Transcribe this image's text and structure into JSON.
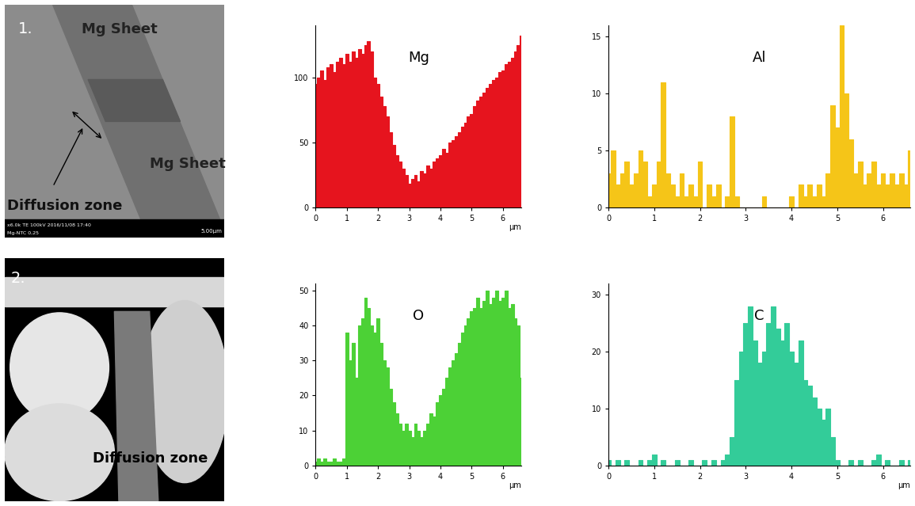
{
  "panels": [
    {
      "label": "1.",
      "top_text": "Mg Sheet",
      "bottom_text": "Mg Sheet",
      "zone_text": "Diffusion zone",
      "info_bar": [
        "x6.0k TE 100kV 2016/11/08 17:40",
        "Mg-NTC 0,25"
      ],
      "scale_bar": "5.00μm"
    },
    {
      "label": "2.",
      "zone_text": "Diffusion zone"
    }
  ],
  "chart_data": [
    {
      "type": "area",
      "title": "Mg",
      "color": "#e6141e",
      "x": [
        0,
        0.1,
        0.2,
        0.3,
        0.4,
        0.5,
        0.6,
        0.7,
        0.8,
        0.9,
        1.0,
        1.1,
        1.2,
        1.3,
        1.4,
        1.5,
        1.6,
        1.7,
        1.8,
        1.9,
        2.0,
        2.1,
        2.2,
        2.3,
        2.4,
        2.5,
        2.6,
        2.7,
        2.8,
        2.9,
        3.0,
        3.1,
        3.2,
        3.3,
        3.4,
        3.5,
        3.6,
        3.7,
        3.8,
        3.9,
        4.0,
        4.1,
        4.2,
        4.3,
        4.4,
        4.5,
        4.6,
        4.7,
        4.8,
        4.9,
        5.0,
        5.1,
        5.2,
        5.3,
        5.4,
        5.5,
        5.6,
        5.7,
        5.8,
        5.9,
        6.0,
        6.1,
        6.2,
        6.3,
        6.4,
        6.5,
        6.6
      ],
      "values": [
        95,
        100,
        105,
        98,
        108,
        110,
        104,
        112,
        115,
        110,
        118,
        112,
        120,
        115,
        122,
        118,
        125,
        128,
        120,
        100,
        95,
        85,
        78,
        70,
        58,
        48,
        40,
        35,
        30,
        25,
        18,
        22,
        25,
        20,
        28,
        26,
        32,
        30,
        35,
        38,
        40,
        45,
        42,
        50,
        52,
        55,
        58,
        62,
        65,
        70,
        72,
        78,
        82,
        85,
        88,
        92,
        95,
        98,
        100,
        104,
        105,
        110,
        112,
        115,
        120,
        125,
        132
      ],
      "xlim": [
        0,
        6.6
      ],
      "xticks": [
        0,
        1,
        2,
        3,
        4,
        5,
        6
      ],
      "ylim": [
        0,
        140
      ],
      "yticks": [
        0,
        50,
        100
      ],
      "x_label": "µm"
    },
    {
      "type": "area",
      "title": "Al",
      "color": "#f5c518",
      "x": [
        0,
        0.1,
        0.2,
        0.3,
        0.4,
        0.5,
        0.6,
        0.7,
        0.8,
        0.9,
        1.0,
        1.1,
        1.2,
        1.3,
        1.4,
        1.5,
        1.6,
        1.7,
        1.8,
        1.9,
        2.0,
        2.1,
        2.2,
        2.3,
        2.4,
        2.5,
        2.6,
        2.7,
        2.8,
        2.9,
        3.0,
        3.1,
        3.2,
        3.3,
        3.4,
        3.5,
        3.6,
        3.7,
        3.8,
        3.9,
        4.0,
        4.1,
        4.2,
        4.3,
        4.4,
        4.5,
        4.6,
        4.7,
        4.8,
        4.9,
        5.0,
        5.1,
        5.2,
        5.3,
        5.4,
        5.5,
        5.6,
        5.7,
        5.8,
        5.9,
        6.0,
        6.1,
        6.2,
        6.3,
        6.4,
        6.5,
        6.6
      ],
      "values": [
        3,
        5,
        2,
        3,
        4,
        2,
        3,
        5,
        4,
        1,
        2,
        4,
        11,
        3,
        2,
        1,
        3,
        1,
        2,
        1,
        4,
        0,
        2,
        1,
        2,
        0,
        1,
        8,
        1,
        0,
        0,
        0,
        0,
        0,
        1,
        0,
        0,
        0,
        0,
        0,
        1,
        0,
        2,
        1,
        2,
        1,
        2,
        1,
        3,
        9,
        7,
        16,
        10,
        6,
        3,
        4,
        2,
        3,
        4,
        2,
        3,
        2,
        3,
        2,
        3,
        2,
        5
      ],
      "xlim": [
        0,
        6.6
      ],
      "xticks": [
        0,
        1,
        2,
        3,
        4,
        5,
        6
      ],
      "ylim": [
        0,
        16
      ],
      "yticks": [
        0,
        5,
        10,
        15
      ]
    },
    {
      "type": "area",
      "title": "O",
      "color": "#4cd136",
      "x": [
        0,
        0.1,
        0.2,
        0.3,
        0.4,
        0.5,
        0.6,
        0.7,
        0.8,
        0.9,
        1.0,
        1.1,
        1.2,
        1.3,
        1.4,
        1.5,
        1.6,
        1.7,
        1.8,
        1.9,
        2.0,
        2.1,
        2.2,
        2.3,
        2.4,
        2.5,
        2.6,
        2.7,
        2.8,
        2.9,
        3.0,
        3.1,
        3.2,
        3.3,
        3.4,
        3.5,
        3.6,
        3.7,
        3.8,
        3.9,
        4.0,
        4.1,
        4.2,
        4.3,
        4.4,
        4.5,
        4.6,
        4.7,
        4.8,
        4.9,
        5.0,
        5.1,
        5.2,
        5.3,
        5.4,
        5.5,
        5.6,
        5.7,
        5.8,
        5.9,
        6.0,
        6.1,
        6.2,
        6.3,
        6.4,
        6.5,
        6.6
      ],
      "values": [
        1,
        2,
        1,
        2,
        1,
        1,
        2,
        1,
        1,
        2,
        38,
        30,
        35,
        25,
        40,
        42,
        48,
        45,
        40,
        38,
        42,
        35,
        30,
        28,
        22,
        18,
        15,
        12,
        10,
        12,
        10,
        8,
        12,
        10,
        8,
        10,
        12,
        15,
        14,
        18,
        20,
        22,
        25,
        28,
        30,
        32,
        35,
        38,
        40,
        42,
        44,
        45,
        48,
        45,
        47,
        50,
        46,
        48,
        50,
        47,
        48,
        50,
        45,
        46,
        42,
        40,
        25
      ],
      "xlim": [
        0,
        6.6
      ],
      "xticks": [
        0,
        1,
        2,
        3,
        4,
        5,
        6
      ],
      "ylim": [
        0,
        52
      ],
      "yticks": [
        0,
        10,
        20,
        30,
        40,
        50
      ],
      "x_label": "µm"
    },
    {
      "type": "area",
      "title": "C",
      "color": "#33cc99",
      "x": [
        0,
        0.1,
        0.2,
        0.3,
        0.4,
        0.5,
        0.6,
        0.7,
        0.8,
        0.9,
        1.0,
        1.1,
        1.2,
        1.3,
        1.4,
        1.5,
        1.6,
        1.7,
        1.8,
        1.9,
        2.0,
        2.1,
        2.2,
        2.3,
        2.4,
        2.5,
        2.6,
        2.7,
        2.8,
        2.9,
        3.0,
        3.1,
        3.2,
        3.3,
        3.4,
        3.5,
        3.6,
        3.7,
        3.8,
        3.9,
        4.0,
        4.1,
        4.2,
        4.3,
        4.4,
        4.5,
        4.6,
        4.7,
        4.8,
        4.9,
        5.0,
        5.1,
        5.2,
        5.3,
        5.4,
        5.5,
        5.6,
        5.7,
        5.8,
        5.9,
        6.0,
        6.1,
        6.2,
        6.3,
        6.4,
        6.5,
        6.6
      ],
      "values": [
        1,
        0,
        1,
        0,
        1,
        0,
        0,
        1,
        0,
        1,
        2,
        0,
        1,
        0,
        0,
        1,
        0,
        0,
        1,
        0,
        0,
        1,
        0,
        1,
        0,
        1,
        2,
        5,
        15,
        20,
        25,
        28,
        22,
        18,
        20,
        25,
        28,
        24,
        22,
        25,
        20,
        18,
        22,
        15,
        14,
        12,
        10,
        8,
        10,
        5,
        1,
        0,
        0,
        1,
        0,
        1,
        0,
        0,
        1,
        2,
        0,
        1,
        0,
        0,
        1,
        0,
        1
      ],
      "xlim": [
        0,
        6.6
      ],
      "xticks": [
        0,
        1,
        2,
        3,
        4,
        5,
        6
      ],
      "ylim": [
        0,
        32
      ],
      "yticks": [
        0,
        10,
        20,
        30
      ],
      "x_label": "µm"
    }
  ]
}
